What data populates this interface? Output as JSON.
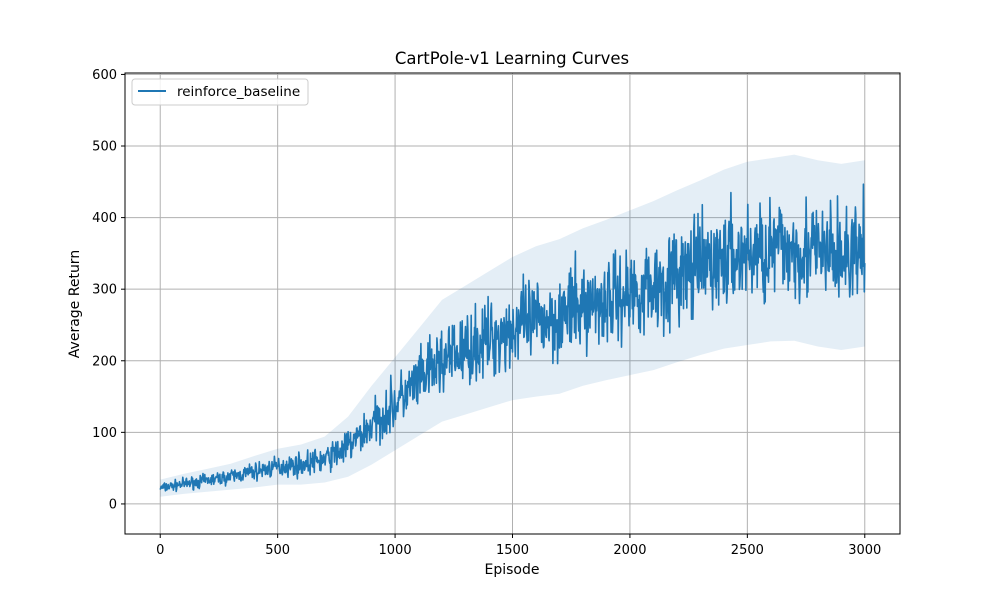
{
  "chart_data": {
    "type": "line",
    "title": "CartPole-v1 Learning Curves",
    "xlabel": "Episode",
    "ylabel": "Average Return",
    "xlim": [
      -150,
      3150
    ],
    "ylim": [
      -42,
      602
    ],
    "xticks": [
      0,
      500,
      1000,
      1500,
      2000,
      2500,
      3000
    ],
    "yticks": [
      0,
      100,
      200,
      300,
      400,
      500,
      600
    ],
    "grid": true,
    "legend_position": "top-left",
    "series": [
      {
        "name": "reinforce_baseline",
        "color": "#1f77b4",
        "shaded_band": "± std (light blue)",
        "x": [
          0,
          100,
          200,
          300,
          400,
          500,
          600,
          700,
          800,
          900,
          1000,
          1100,
          1200,
          1300,
          1400,
          1500,
          1600,
          1700,
          1800,
          1900,
          2000,
          2100,
          2200,
          2300,
          2400,
          2500,
          2600,
          2700,
          2800,
          2900,
          3000
        ],
        "y": [
          22,
          28,
          33,
          38,
          45,
          52,
          55,
          62,
          80,
          110,
          140,
          170,
          200,
          215,
          230,
          245,
          255,
          262,
          275,
          285,
          295,
          305,
          318,
          330,
          342,
          350,
          355,
          358,
          350,
          345,
          350
        ],
        "band_halfwidth": [
          12,
          14,
          16,
          18,
          22,
          25,
          28,
          32,
          42,
          55,
          65,
          75,
          85,
          90,
          95,
          100,
          105,
          108,
          110,
          112,
          115,
          118,
          120,
          122,
          125,
          128,
          128,
          130,
          130,
          130,
          130
        ]
      }
    ]
  }
}
